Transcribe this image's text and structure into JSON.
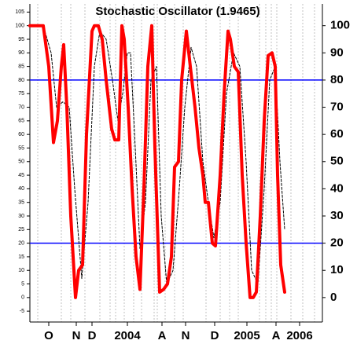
{
  "chart_data": {
    "type": "line",
    "title": "Stochastic Oscillator (1.9465)",
    "xlim": [
      0,
      372
    ],
    "xticks": [
      {
        "value": 24,
        "label": "O"
      },
      {
        "value": 59,
        "label": "N"
      },
      {
        "value": 79,
        "label": "D"
      },
      {
        "value": 124,
        "label": "2004"
      },
      {
        "value": 168,
        "label": "A"
      },
      {
        "value": 198,
        "label": "N"
      },
      {
        "value": 235,
        "label": "D"
      },
      {
        "value": 276,
        "label": "2005"
      },
      {
        "value": 313,
        "label": "A"
      },
      {
        "value": 343,
        "label": "2006"
      }
    ],
    "ylim": [
      -9,
      108
    ],
    "yticks": [
      -5,
      0,
      5,
      10,
      15,
      20,
      25,
      30,
      35,
      40,
      45,
      50,
      55,
      60,
      65,
      70,
      75,
      80,
      85,
      90,
      95,
      100,
      105
    ],
    "y2lim": [
      -9,
      108
    ],
    "y2ticks": [
      0,
      10,
      20,
      30,
      40,
      50,
      60,
      70,
      80,
      90,
      100
    ],
    "reference_lines": [
      {
        "value": 80,
        "color": "#0000ff"
      },
      {
        "value": 20,
        "color": "#0000ff"
      }
    ],
    "series": [
      {
        "color": "#ff0000",
        "width": 4,
        "dash": false,
        "x": [
          0,
          17,
          24,
          30,
          35,
          40,
          43,
          47,
          52,
          58,
          62,
          67,
          72,
          79,
          82,
          87,
          92,
          97,
          104,
          108,
          113,
          117,
          120,
          125,
          130,
          135,
          140,
          145,
          150,
          155,
          159,
          165,
          170,
          175,
          180,
          184,
          189,
          193,
          199,
          204,
          210,
          215,
          220,
          223,
          227,
          232,
          236,
          242,
          247,
          252,
          255,
          260,
          265,
          270,
          275,
          280,
          284,
          288,
          293,
          298,
          303,
          308,
          312,
          315,
          319,
          324
        ],
        "values": [
          100,
          100,
          85,
          57,
          65,
          85,
          93,
          70,
          30,
          0,
          10,
          12,
          60,
          98,
          100,
          100,
          95,
          80,
          62,
          58,
          58,
          100,
          95,
          70,
          40,
          15,
          3,
          40,
          85,
          100,
          55,
          2,
          3,
          5,
          15,
          48,
          50,
          80,
          98,
          85,
          70,
          55,
          45,
          35,
          35,
          20,
          19,
          45,
          75,
          98,
          95,
          85,
          83,
          45,
          20,
          0,
          0,
          2,
          30,
          65,
          89,
          90,
          85,
          45,
          12,
          2
        ]
      },
      {
        "color": "#000000",
        "width": 1,
        "dash": true,
        "x": [
          0,
          17,
          27,
          34,
          42,
          50,
          57,
          66,
          74,
          82,
          89,
          97,
          105,
          112,
          118,
          124,
          128,
          134,
          140,
          147,
          154,
          161,
          167,
          174,
          182,
          190,
          197,
          205,
          212,
          220,
          227,
          234,
          242,
          250,
          259,
          267,
          275,
          282,
          290,
          298,
          305,
          312,
          318,
          324
        ],
        "values": [
          100,
          100,
          90,
          70,
          72,
          70,
          40,
          7,
          35,
          85,
          98,
          95,
          80,
          65,
          75,
          90,
          90,
          55,
          18,
          35,
          80,
          85,
          30,
          5,
          10,
          40,
          70,
          92,
          85,
          50,
          35,
          22,
          35,
          75,
          90,
          85,
          50,
          10,
          5,
          40,
          80,
          85,
          50,
          25
        ]
      }
    ]
  }
}
